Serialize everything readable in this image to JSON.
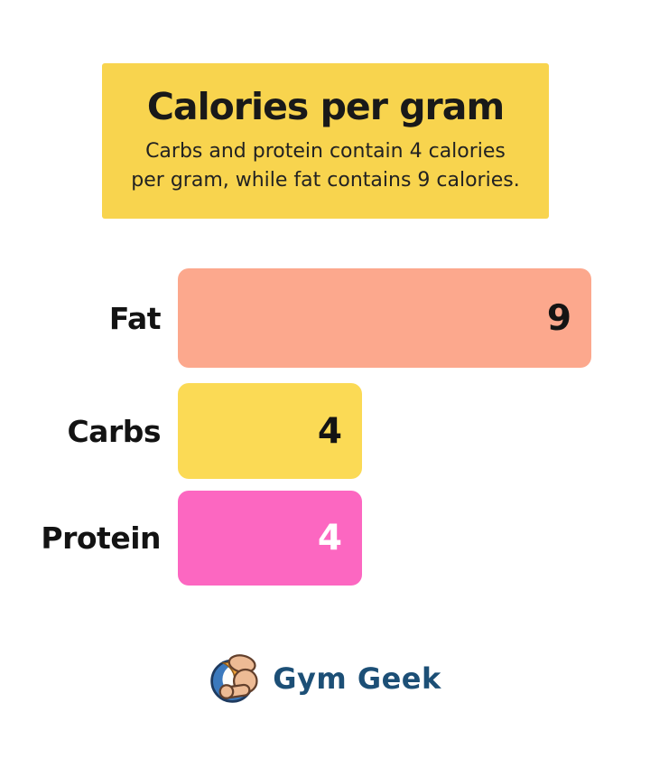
{
  "header": {
    "title": "Calories per gram",
    "subtitle_line1": "Carbs and protein contain 4 calories",
    "subtitle_line2": "per gram, while fat contains 9 calories.",
    "background": "#F8D44E"
  },
  "chart_data": {
    "type": "bar",
    "orientation": "horizontal",
    "title": "Calories per gram",
    "categories": [
      "Fat",
      "Carbs",
      "Protein"
    ],
    "values": [
      9,
      4,
      4
    ],
    "unit": "calories per gram",
    "xlim": [
      0,
      9
    ],
    "grid": false,
    "legend": false,
    "value_labels_inside_bar_end": true,
    "bar_colors": [
      "#FCA88D",
      "#FBDA55",
      "#FC67C1"
    ],
    "value_label_colors": [
      "#141414",
      "#141414",
      "#FFFFFF"
    ]
  },
  "footer": {
    "brand": "Gym Geek",
    "brand_color": "#1C4F76",
    "logo": "flexing-arm-in-blue-circle"
  }
}
